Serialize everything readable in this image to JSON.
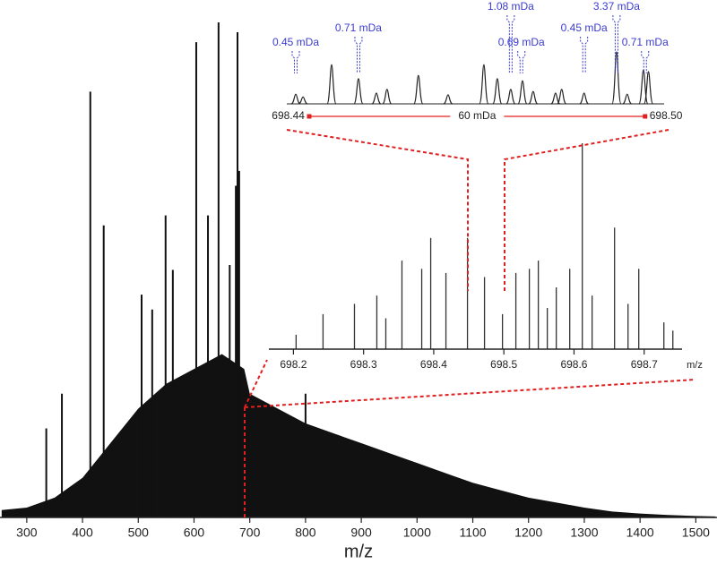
{
  "chart_data": [
    {
      "type": "spectrum",
      "xlabel": "m/z",
      "xlim": [
        252,
        1538
      ],
      "ylim": [
        0,
        100
      ],
      "xticks": [
        300,
        400,
        500,
        600,
        700,
        800,
        900,
        1000,
        1100,
        1200,
        1300,
        1400,
        1500
      ],
      "series": [
        {
          "style": "area",
          "color": "#111111",
          "x": [
            255,
            300,
            350,
            400,
            450,
            500,
            550,
            600,
            650,
            690,
            700,
            750,
            800,
            850,
            900,
            950,
            1000,
            1050,
            1100,
            1150,
            1200,
            1250,
            1300,
            1350,
            1400,
            1450,
            1500,
            1535
          ],
          "values": [
            1.5,
            2,
            4,
            8,
            15,
            22,
            27,
            30,
            33,
            30,
            25,
            22,
            19,
            17,
            15,
            13,
            11,
            9,
            7,
            5.5,
            4,
            3,
            2,
            1.2,
            0.8,
            0.5,
            0.3,
            0.2
          ]
        },
        {
          "style": "stick",
          "color": "#111111",
          "x": [
            335,
            363,
            414,
            438,
            506,
            525,
            549,
            562,
            604,
            625,
            644,
            664,
            675,
            678,
            681,
            800
          ],
          "values": [
            18,
            25,
            86,
            59,
            45,
            42,
            61,
            50,
            96,
            61,
            100,
            51,
            67,
            98,
            70,
            25
          ]
        }
      ]
    },
    {
      "type": "spectrum",
      "xlabel": "m/z",
      "xlim": [
        698.165,
        698.754
      ],
      "ylim": [
        0,
        100
      ],
      "xticks": [
        698.2,
        698.3,
        698.4,
        698.5,
        698.6,
        698.7
      ],
      "series": [
        {
          "style": "stick",
          "color": "#333333",
          "x": [
            698.2038,
            698.2422,
            698.287,
            698.3189,
            698.3317,
            698.3547,
            698.3829,
            698.3957,
            698.4174,
            698.4481,
            698.4724,
            698.498,
            698.5171,
            698.5363,
            698.5491,
            698.5619,
            698.5747,
            698.5939,
            698.6118,
            698.6258,
            698.6578,
            698.677,
            698.6923,
            698.7281,
            698.7409
          ],
          "values": [
            7,
            17,
            22,
            26,
            15,
            43,
            39,
            54,
            37,
            54,
            35,
            17,
            37,
            39,
            43,
            20,
            30,
            39,
            100,
            26,
            59,
            22,
            39,
            13,
            9
          ]
        }
      ]
    },
    {
      "type": "spectrum",
      "xlim": [
        698.436,
        698.5034
      ],
      "ylim": [
        0,
        100
      ],
      "xticks": [
        698.44,
        {
          "value": 698.5,
          "label": "698.50"
        }
      ],
      "scalebar_label": "60 mDa",
      "annotation_color": "#3b3bd0",
      "annotations": [
        {
          "text": "0.45 mDa",
          "x": 698.4376
        },
        {
          "text": "0.71 mDa",
          "x": 698.4488
        },
        {
          "text": "1.08 mDa",
          "x": 698.476
        },
        {
          "text": "0.69 mDa",
          "x": 698.4779
        },
        {
          "text": "0.45 mDa",
          "x": 698.4891
        },
        {
          "text": "3.37 mDa",
          "x": 698.4949
        },
        {
          "text": "0.71 mDa",
          "x": 698.5
        }
      ],
      "series": [
        {
          "style": "peak",
          "color": "#222222",
          "x": [
            698.4376,
            698.4389,
            698.444,
            698.4488,
            698.452,
            698.4539,
            698.4595,
            698.4648,
            698.4712,
            698.4736,
            698.476,
            698.4781,
            698.48,
            698.484,
            698.4851,
            698.4891,
            698.4949,
            698.4968,
            698.4997,
            698.5006
          ],
          "values": [
            18,
            13,
            73,
            47,
            20,
            27,
            53,
            17,
            73,
            47,
            27,
            43,
            23,
            20,
            27,
            20,
            97,
            18,
            63,
            60
          ]
        }
      ]
    }
  ]
}
